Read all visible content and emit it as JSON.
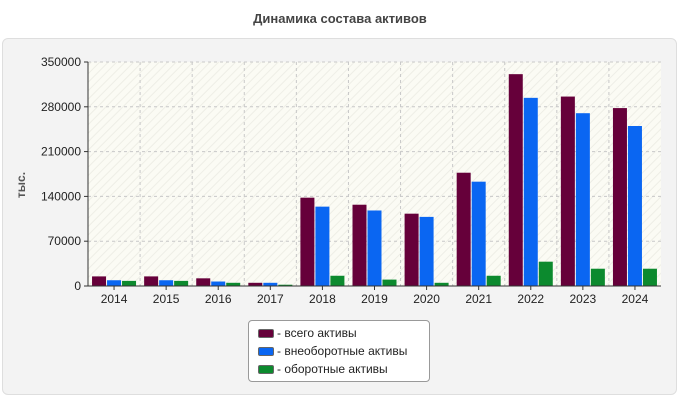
{
  "chart_data": {
    "type": "bar",
    "title": "Динамика состава активов",
    "ylabel": "тыс.",
    "xlabel": "",
    "ylim": [
      0,
      350000
    ],
    "yticks": [
      0,
      70000,
      140000,
      210000,
      280000,
      350000
    ],
    "grid": true,
    "legend_position": "bottom-center",
    "categories": [
      "2014",
      "2015",
      "2016",
      "2017",
      "2018",
      "2019",
      "2020",
      "2021",
      "2022",
      "2023",
      "2024"
    ],
    "series": [
      {
        "name": "- всего активы",
        "color": "#66003a",
        "values": [
          15000,
          15000,
          12000,
          5000,
          138000,
          127000,
          113000,
          177000,
          331000,
          296000,
          278000
        ]
      },
      {
        "name": "- внеоборотные активы",
        "color": "#0a66f2",
        "values": [
          9000,
          9000,
          7000,
          5000,
          124000,
          118000,
          108000,
          163000,
          294000,
          270000,
          250000
        ]
      },
      {
        "name": "- оборотные активы",
        "color": "#0c8a2e",
        "values": [
          8000,
          8000,
          5000,
          2000,
          16000,
          10000,
          5000,
          16000,
          38000,
          27000,
          27000
        ]
      }
    ]
  }
}
